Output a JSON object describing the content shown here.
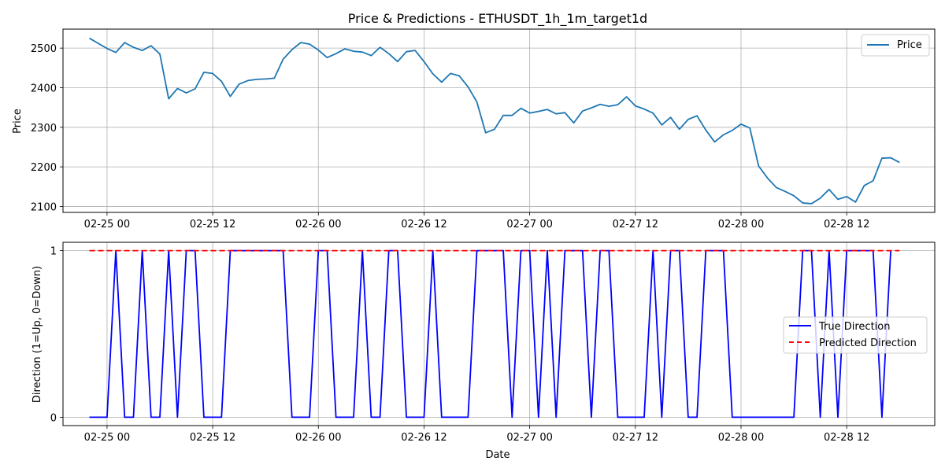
{
  "chart_data": [
    {
      "type": "line",
      "title": "Price & Predictions - ETHUSDT_1h_1m_target1d",
      "xlabel": "",
      "ylabel": "Price",
      "x_unit": "datetime (hourly)",
      "x_start": "2025-02-24 22:00",
      "x_step_hours": 1,
      "xlim": [
        "2025-02-24 19:00",
        "2025-02-28 22:00"
      ],
      "ylim": [
        2085,
        2548
      ],
      "x_tick_labels": [
        "02-25 00",
        "02-25 12",
        "02-26 00",
        "02-26 12",
        "02-27 00",
        "02-27 12",
        "02-28 00",
        "02-28 12"
      ],
      "y_ticks": [
        2100,
        2200,
        2300,
        2400,
        2500
      ],
      "grid": true,
      "legend_position": "upper right",
      "series": [
        {
          "name": "Price",
          "color": "#1f77b4",
          "values": [
            2525,
            2512,
            2499,
            2489,
            2514,
            2502,
            2494,
            2506,
            2485,
            2372,
            2398,
            2387,
            2397,
            2439,
            2436,
            2416,
            2378,
            2409,
            2418,
            2421,
            2422,
            2424,
            2472,
            2496,
            2514,
            2510,
            2495,
            2476,
            2486,
            2498,
            2492,
            2490,
            2481,
            2502,
            2486,
            2466,
            2491,
            2494,
            2466,
            2435,
            2414,
            2436,
            2430,
            2402,
            2364,
            2286,
            2295,
            2330,
            2330,
            2348,
            2336,
            2340,
            2345,
            2334,
            2337,
            2311,
            2341,
            2349,
            2358,
            2353,
            2357,
            2377,
            2354,
            2346,
            2336,
            2306,
            2325,
            2295,
            2320,
            2329,
            2293,
            2263,
            2281,
            2292,
            2308,
            2298,
            2202,
            2172,
            2148,
            2138,
            2127,
            2109,
            2107,
            2121,
            2143,
            2118,
            2125,
            2111,
            2153,
            2165,
            2222,
            2223,
            2211
          ]
        }
      ]
    },
    {
      "type": "line",
      "title": "",
      "xlabel": "Date",
      "ylabel": "Direction (1=Up, 0=Down)",
      "x_unit": "datetime (hourly)",
      "x_start": "2025-02-24 22:00",
      "x_step_hours": 1,
      "xlim": [
        "2025-02-24 19:00",
        "2025-02-28 22:00"
      ],
      "ylim": [
        -0.05,
        1.05
      ],
      "x_tick_labels": [
        "02-25 00",
        "02-25 12",
        "02-26 00",
        "02-26 12",
        "02-27 00",
        "02-27 12",
        "02-28 00",
        "02-28 12"
      ],
      "y_ticks": [
        0,
        1
      ],
      "grid": true,
      "legend_position": "center right",
      "series": [
        {
          "name": "True Direction",
          "color": "#0000ff",
          "style": "solid",
          "values": [
            0,
            0,
            0,
            1,
            0,
            0,
            1,
            0,
            0,
            1,
            0,
            1,
            1,
            0,
            0,
            0,
            1,
            1,
            1,
            1,
            1,
            1,
            1,
            0,
            0,
            0,
            1,
            1,
            0,
            0,
            0,
            1,
            0,
            0,
            1,
            1,
            0,
            0,
            0,
            1,
            0,
            0,
            0,
            0,
            1,
            1,
            1,
            1,
            0,
            1,
            1,
            0,
            1,
            0,
            1,
            1,
            1,
            0,
            1,
            1,
            0,
            0,
            0,
            0,
            1,
            0,
            1,
            1,
            0,
            0,
            1,
            1,
            1,
            0,
            0,
            0,
            0,
            0,
            0,
            0,
            0,
            1,
            1,
            0,
            1,
            0,
            1,
            1,
            1,
            1,
            0,
            1
          ]
        },
        {
          "name": "Predicted Direction",
          "color": "#ff0000",
          "style": "dashed",
          "values": [
            1,
            1,
            1,
            1,
            1,
            1,
            1,
            1,
            1,
            1,
            1,
            1,
            1,
            1,
            1,
            1,
            1,
            1,
            1,
            1,
            1,
            1,
            1,
            1,
            1,
            1,
            1,
            1,
            1,
            1,
            1,
            1,
            1,
            1,
            1,
            1,
            1,
            1,
            1,
            1,
            1,
            1,
            1,
            1,
            1,
            1,
            1,
            1,
            1,
            1,
            1,
            1,
            1,
            1,
            1,
            1,
            1,
            1,
            1,
            1,
            1,
            1,
            1,
            1,
            1,
            1,
            1,
            1,
            1,
            1,
            1,
            1,
            1,
            1,
            1,
            1,
            1,
            1,
            1,
            1,
            1,
            1,
            1,
            1,
            1,
            1,
            1,
            1,
            1,
            1,
            1,
            1,
            1
          ]
        }
      ]
    }
  ]
}
